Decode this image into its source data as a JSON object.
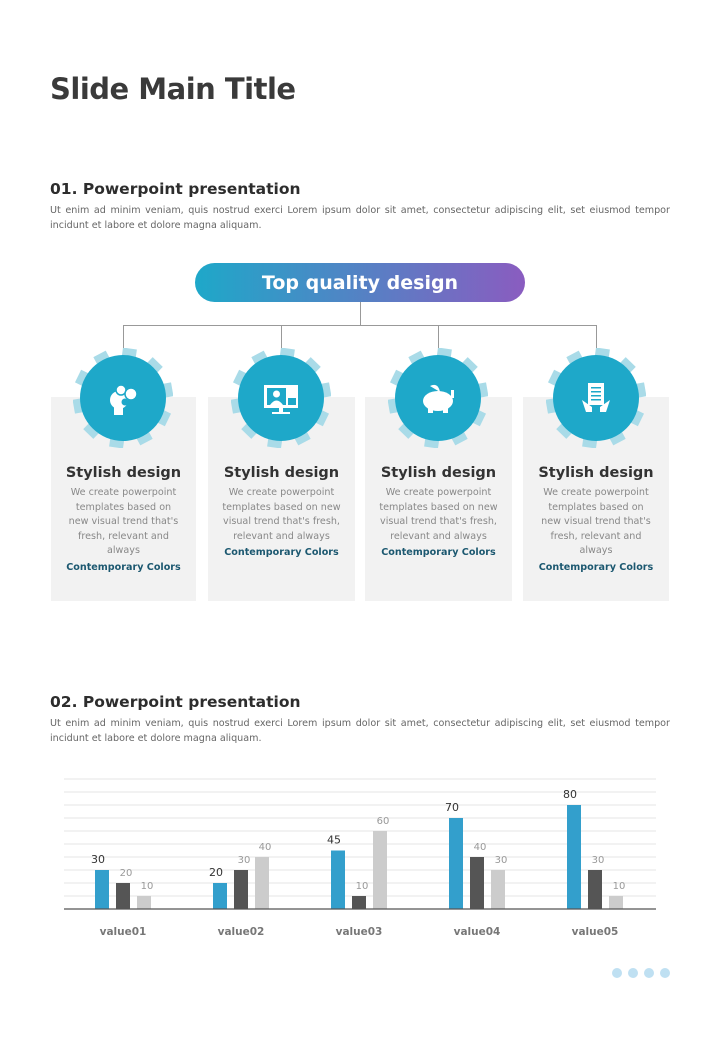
{
  "title": "Slide Main Title",
  "section1": {
    "heading": "01. Powerpoint presentation",
    "body": "Ut enim ad minim veniam, quis nostrud exerci  Lorem ipsum dolor sit amet, consectetur adipiscing elit, set eiusmod tempor incidunt et labore et dolore magna aliquam."
  },
  "pill": "Top quality design",
  "cards": [
    {
      "icon": "head-gears-icon",
      "title": "Stylish design",
      "desc": "We create powerpoint templates based on new visual trend that's fresh, relevant and always",
      "link": "Contemporary Colors"
    },
    {
      "icon": "video-call-monitor-icon",
      "title": "Stylish design",
      "desc": "We create powerpoint templates based on new visual trend that's fresh, relevant and always",
      "link": "Contemporary Colors"
    },
    {
      "icon": "piggy-bank-icon",
      "title": "Stylish design",
      "desc": "We create powerpoint templates based on new visual trend that's fresh, relevant and always",
      "link": "Contemporary Colors"
    },
    {
      "icon": "hands-document-icon",
      "title": "Stylish design",
      "desc": "We create powerpoint templates based on new visual trend that's fresh, relevant and always",
      "link": "Contemporary Colors"
    }
  ],
  "section2": {
    "heading": "02. Powerpoint presentation",
    "body": "Ut enim ad minim veniam, quis nostrud exerci  Lorem ipsum dolor sit amet, consectetur adipiscing elit, set eiusmod tempor incidunt et labore et dolore magna aliquam."
  },
  "colors": {
    "accent": "#1ea8c9",
    "series": [
      "#339fcc",
      "#555555",
      "#cccccc"
    ]
  },
  "chart_data": {
    "type": "bar",
    "categories": [
      "value01",
      "value02",
      "value03",
      "value04",
      "value05"
    ],
    "series": [
      {
        "values": [
          30,
          20,
          45,
          70,
          80
        ]
      },
      {
        "values": [
          20,
          30,
          10,
          40,
          30
        ]
      },
      {
        "values": [
          10,
          40,
          60,
          30,
          10
        ]
      }
    ],
    "ylim": [
      0,
      100
    ],
    "grid": true
  }
}
